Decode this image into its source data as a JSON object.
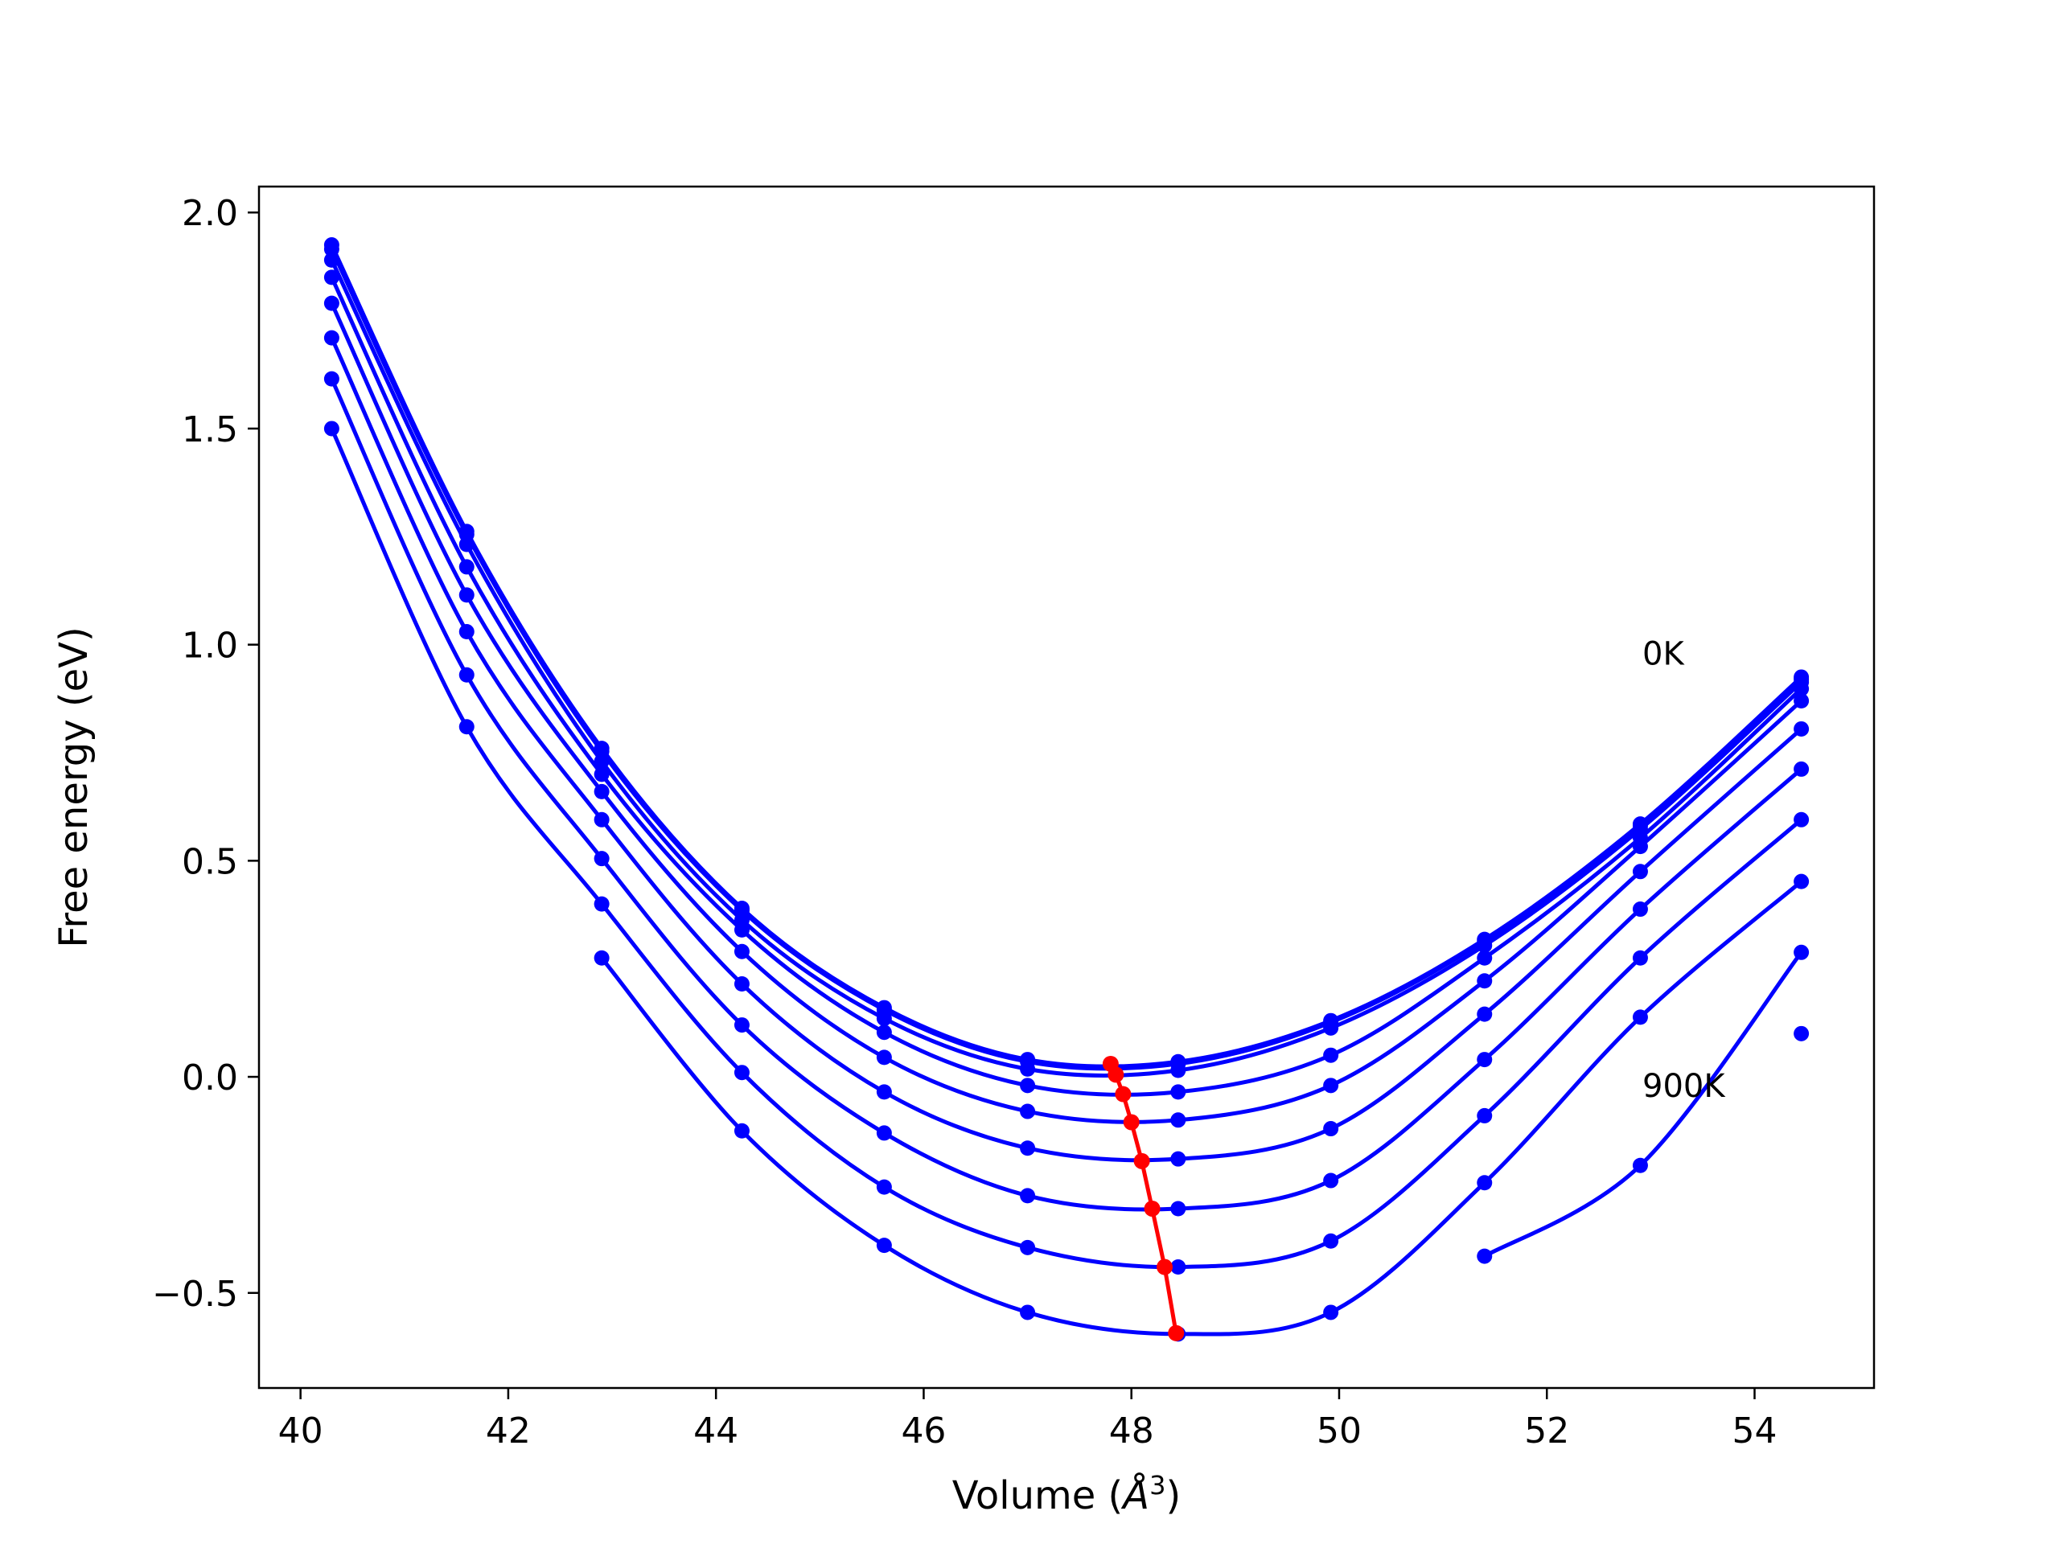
{
  "chart_data": {
    "type": "line",
    "title": "",
    "xlabel": "Volume (",
    "xlabel_symbol": "Å",
    "xlabel_power": "3",
    "xlabel_close": ")",
    "ylabel": "Free energy (eV)",
    "xlim": [
      39.6,
      55.15
    ],
    "ylim": [
      -0.72,
      2.06
    ],
    "xticks": [
      40,
      42,
      44,
      46,
      48,
      50,
      52,
      54
    ],
    "xtick_labels": [
      "40",
      "42",
      "44",
      "46",
      "48",
      "50",
      "52",
      "54"
    ],
    "yticks": [
      -0.5,
      0.0,
      0.5,
      1.0,
      1.5,
      2.0
    ],
    "ytick_labels": [
      "−0.5",
      "0.0",
      "0.5",
      "1.0",
      "1.5",
      "2.0"
    ],
    "grid": false,
    "colors": {
      "curves": "#0000ff",
      "minima": "#ff0000"
    },
    "x": [
      40.3,
      41.6,
      42.9,
      44.25,
      45.62,
      47.0,
      48.45,
      49.92,
      51.4,
      52.9,
      54.45
    ],
    "series": [
      {
        "values": [
          1.925,
          1.262,
          0.76,
          0.39,
          0.16,
          0.04,
          0.035,
          0.13,
          0.318,
          0.585,
          0.925
        ]
      },
      {
        "values": [
          1.915,
          1.255,
          0.753,
          0.385,
          0.155,
          0.035,
          0.03,
          0.126,
          0.314,
          0.581,
          0.92
        ]
      },
      {
        "values": [
          1.89,
          1.232,
          0.73,
          0.363,
          0.135,
          0.018,
          0.015,
          0.113,
          0.304,
          0.573,
          0.913
        ]
      },
      {
        "values": [
          1.85,
          1.18,
          0.7,
          0.34,
          0.103,
          -0.02,
          -0.035,
          0.05,
          0.275,
          0.553,
          0.898
        ]
      },
      {
        "values": [
          1.79,
          1.115,
          0.66,
          0.29,
          0.045,
          -0.08,
          -0.1,
          -0.02,
          0.222,
          0.533,
          0.87
        ]
      },
      {
        "values": [
          1.71,
          1.03,
          0.595,
          0.215,
          -0.035,
          -0.165,
          -0.19,
          -0.12,
          0.145,
          0.475,
          0.805
        ]
      },
      {
        "values": [
          1.615,
          0.93,
          0.505,
          0.12,
          -0.13,
          -0.275,
          -0.305,
          -0.24,
          0.04,
          0.388,
          0.712
        ]
      },
      {
        "values": [
          1.5,
          0.81,
          0.4,
          0.01,
          -0.255,
          -0.395,
          -0.44,
          -0.38,
          -0.09,
          0.275,
          0.595
        ]
      },
      {
        "values": [
          null,
          null,
          0.275,
          -0.125,
          -0.39,
          -0.545,
          -0.595,
          -0.545,
          -0.245,
          0.138,
          0.452
        ]
      },
      {
        "values": [
          null,
          null,
          null,
          null,
          null,
          null,
          null,
          null,
          -0.415,
          -0.205,
          0.288
        ]
      },
      {
        "values": [
          null,
          null,
          null,
          null,
          null,
          null,
          null,
          null,
          null,
          null,
          0.1
        ]
      }
    ],
    "minima": {
      "x": [
        47.8,
        47.85,
        47.92,
        48.0,
        48.1,
        48.2,
        48.32,
        48.43
      ],
      "y": [
        0.03,
        0.005,
        -0.04,
        -0.105,
        -0.195,
        -0.305,
        -0.44,
        -0.593
      ]
    },
    "annotations": [
      {
        "text": "0K",
        "x": 52.92,
        "y": 0.98
      },
      {
        "text": "900K",
        "x": 52.92,
        "y": -0.02
      }
    ]
  }
}
